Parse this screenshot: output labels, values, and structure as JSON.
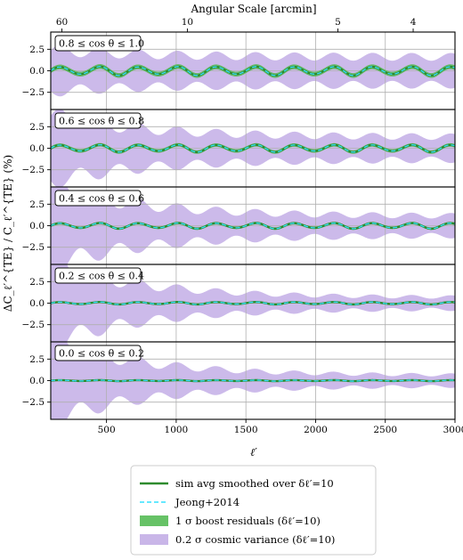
{
  "chart_data": {
    "type": "line",
    "top_axis": {
      "label": "Angular Scale [arcmin]",
      "ticks": [
        {
          "label": "60",
          "ell": 180
        },
        {
          "label": "10",
          "ell": 1080
        },
        {
          "label": "5",
          "ell": 2160
        },
        {
          "label": "4",
          "ell": 2700
        }
      ]
    },
    "xlabel": "ℓ′",
    "ylabel": "ΔC_ℓ′^{TE} / C_ℓ′^{TE} (%)",
    "xlim": [
      100,
      3000
    ],
    "ylim": [
      -4.5,
      4.5
    ],
    "xticks": [
      500,
      1000,
      1500,
      2000,
      2500,
      3000
    ],
    "yticks": [
      2.5,
      0.0,
      -2.5
    ],
    "ytick_labels": [
      "2.5",
      "0.0",
      "−2.5"
    ],
    "grid": true,
    "panels": [
      {
        "label": "0.8 ≤ cos θ ≤ 1.0",
        "signal_amplitude": 0.55,
        "boost_band": 0.28,
        "cv_low_ell": 2.4,
        "cv_high_ell": 1.6
      },
      {
        "label": "0.6 ≤ cos θ ≤ 0.8",
        "signal_amplitude": 0.45,
        "boost_band": 0.2,
        "cv_low_ell": 3.8,
        "cv_high_ell": 1.3
      },
      {
        "label": "0.4 ≤ cos θ ≤ 0.6",
        "signal_amplitude": 0.35,
        "boost_band": 0.15,
        "cv_low_ell": 4.5,
        "cv_high_ell": 1.1
      },
      {
        "label": "0.2 ≤ cos θ ≤ 0.4",
        "signal_amplitude": 0.15,
        "boost_band": 0.1,
        "cv_low_ell": 4.5,
        "cv_high_ell": 0.65
      },
      {
        "label": "0.0 ≤ cos θ ≤ 0.2",
        "signal_amplitude": 0.06,
        "boost_band": 0.07,
        "cv_low_ell": 4.5,
        "cv_high_ell": 0.6
      }
    ],
    "oscillation_period_ell": 280,
    "legend": {
      "placement": "bottom-center",
      "entries": [
        {
          "label": "sim avg smoothed over δℓ′=10",
          "kind": "line",
          "color": "#2e8b2e"
        },
        {
          "label": "Jeong+2014",
          "kind": "dashed",
          "color": "#33e0ff"
        },
        {
          "label": "1 σ boost residuals (δℓ′=10)",
          "kind": "patch",
          "color": "#55bb55"
        },
        {
          "label": "0.2 σ cosmic variance (δℓ′=10)",
          "kind": "patch",
          "color": "#c3aee6"
        }
      ]
    }
  },
  "colors": {
    "sim_line": "#2e8b2e",
    "theory_dash": "#33e0ff",
    "boost_band": "#55bb55",
    "cosmic_variance": "#c3aee6",
    "grid": "#b0b0b0"
  }
}
